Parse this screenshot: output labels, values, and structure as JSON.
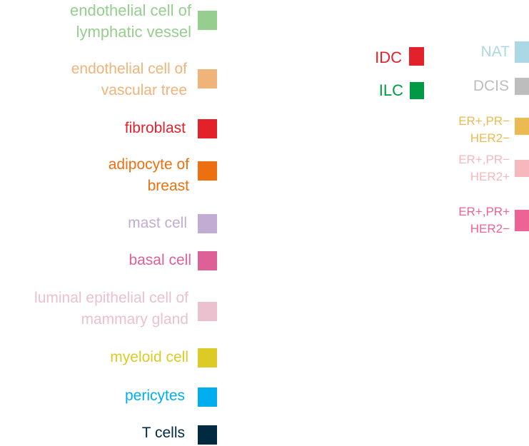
{
  "cell_type_legend": {
    "items": [
      {
        "label": "endothelial cell of\nlymphatic vessel",
        "color": "#95ce8e"
      },
      {
        "label": "endothelial cell of\nvascular tree",
        "color": "#f0b47a"
      },
      {
        "label": "fibroblast",
        "color": "#e3212a"
      },
      {
        "label": "adipocyte of\nbreast",
        "color": "#ec700f"
      },
      {
        "label": "mast cell",
        "color": "#c3acd4"
      },
      {
        "label": "basal cell",
        "color": "#dd6097"
      },
      {
        "label": "luminal epithelial cell of\nmammary gland",
        "color": "#ecc1cf"
      },
      {
        "label": "myeloid cell",
        "color": "#dccb26"
      },
      {
        "label": "pericytes",
        "color": "#00aeef"
      },
      {
        "label": "T cells",
        "color": "#002a42"
      }
    ]
  },
  "histology_legend": {
    "items": [
      {
        "label": "IDC",
        "color": "#e3212a"
      },
      {
        "label": "ILC",
        "color": "#009a44"
      }
    ]
  },
  "subtype_legend": {
    "items": [
      {
        "label": "NAT",
        "color": "#acd8e6"
      },
      {
        "label": "DCIS",
        "color": "#bdbdbd"
      },
      {
        "label": "ER+,PR−\nHER2−",
        "color": "#ebbb52"
      },
      {
        "label": "ER+,PR−\nHER2+",
        "color": "#f6b8bd"
      },
      {
        "label": "ER+,PR+\nHER2−",
        "color": "#ec6394"
      }
    ]
  }
}
